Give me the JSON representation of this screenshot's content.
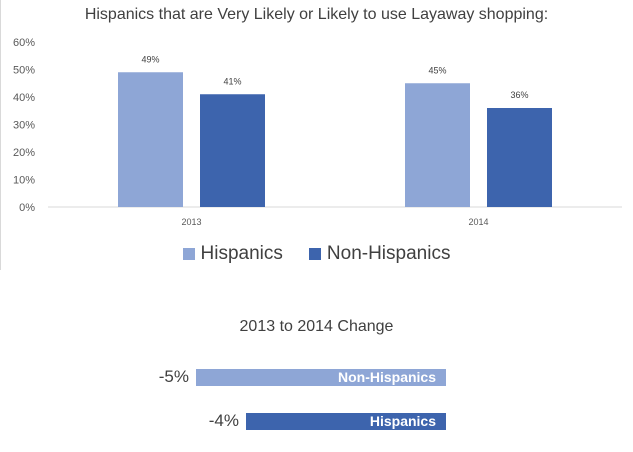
{
  "chart_data": [
    {
      "type": "bar",
      "title": "Hispanics that are Very Likely or Likely to use Layaway shopping:",
      "categories": [
        "2013",
        "2014"
      ],
      "series": [
        {
          "name": "Hispanics",
          "color": "#8ea6d6",
          "values": [
            49,
            45
          ],
          "labels": [
            "49%",
            "45%"
          ]
        },
        {
          "name": "Non-Hispanics",
          "color": "#3d64ad",
          "values": [
            41,
            36
          ],
          "labels": [
            "41%",
            "36%"
          ]
        }
      ],
      "ylim": [
        0,
        60
      ],
      "yticks": [
        "0%",
        "10%",
        "20%",
        "30%",
        "40%",
        "50%",
        "60%"
      ],
      "xlabel": "",
      "ylabel": "",
      "legend": "bottom"
    },
    {
      "type": "bar",
      "orientation": "horizontal",
      "title": "2013 to 2014 Change",
      "items": [
        {
          "name": "Non-Hispanics",
          "value": -5,
          "label": "-5%",
          "color": "#8ea6d6"
        },
        {
          "name": "Hispanics",
          "value": -4,
          "label": "-4%",
          "color": "#3d64ad"
        }
      ]
    }
  ]
}
